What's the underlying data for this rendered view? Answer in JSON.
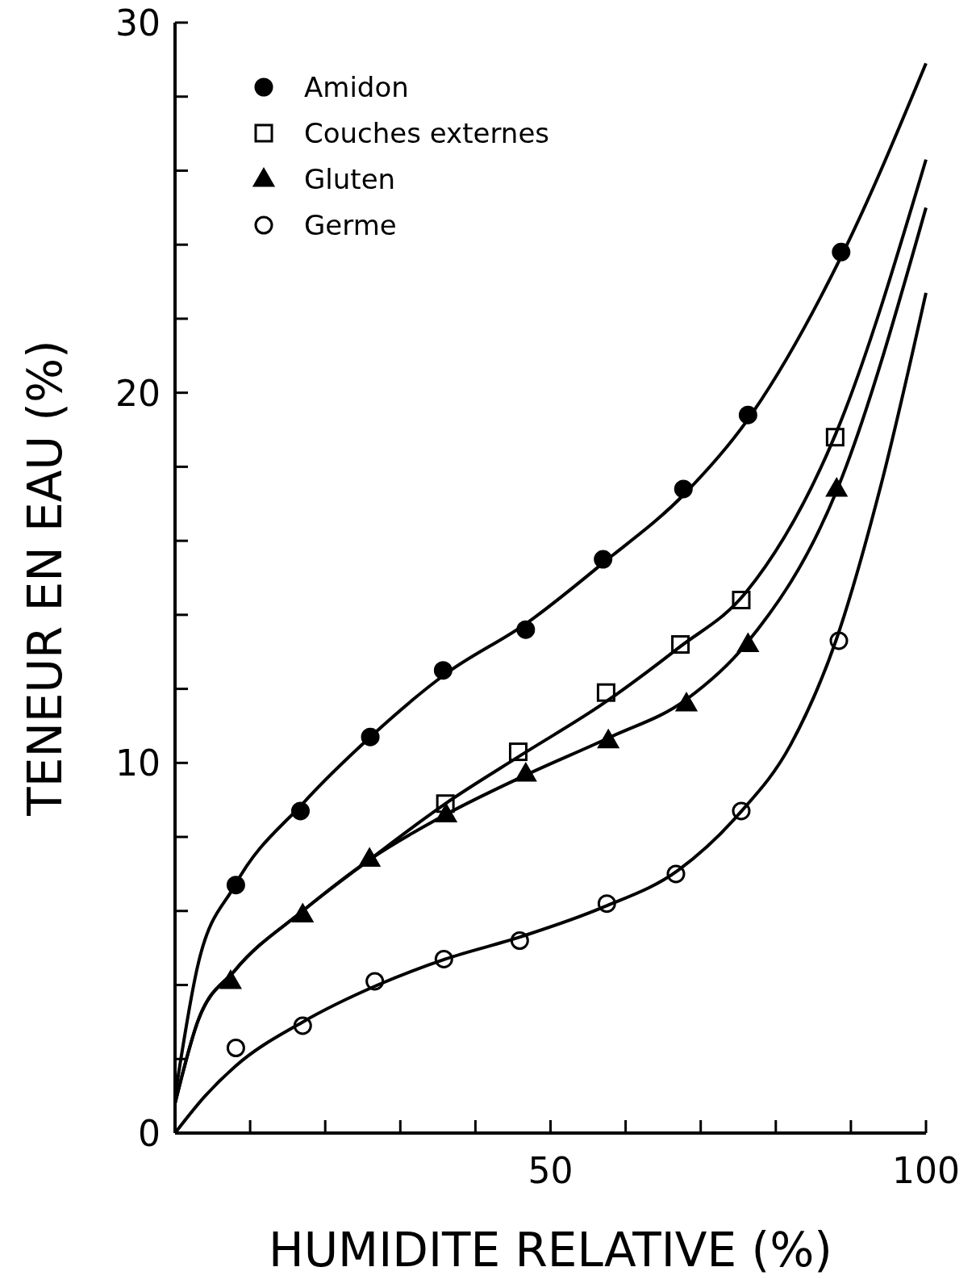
{
  "chart_data": {
    "type": "scatter",
    "xlabel": "HUMIDITE RELATIVE (%)",
    "ylabel": "TENEUR EN EAU (%)",
    "xlim": [
      0,
      100
    ],
    "ylim": [
      0,
      30
    ],
    "xticks": [
      {
        "value": 0,
        "label": null
      },
      {
        "value": 10,
        "label": null
      },
      {
        "value": 20,
        "label": null
      },
      {
        "value": 30,
        "label": null
      },
      {
        "value": 40,
        "label": null
      },
      50,
      {
        "value": 60,
        "label": null
      },
      {
        "value": 70,
        "label": null
      },
      {
        "value": 80,
        "label": null
      },
      {
        "value": 90,
        "label": null
      },
      100
    ],
    "yticks": [
      0,
      {
        "value": 2,
        "label": null
      },
      {
        "value": 4,
        "label": null
      },
      {
        "value": 6,
        "label": null
      },
      {
        "value": 8,
        "label": null
      },
      10,
      {
        "value": 12,
        "label": null
      },
      {
        "value": 14,
        "label": null
      },
      {
        "value": 16,
        "label": null
      },
      {
        "value": 18,
        "label": null
      },
      20,
      {
        "value": 22,
        "label": null
      },
      {
        "value": 24,
        "label": null
      },
      {
        "value": 26,
        "label": null
      },
      {
        "value": 28,
        "label": null
      },
      30
    ],
    "legend": "top left",
    "grid": false,
    "series": [
      {
        "name": "Amidon",
        "marker": "circle",
        "color": "#000000",
        "x": [
          8.1,
          16.7,
          26.0,
          35.7,
          46.7,
          57.0,
          67.7,
          76.3,
          88.7
        ],
        "values": [
          6.7,
          8.7,
          10.7,
          12.5,
          13.6,
          15.5,
          17.4,
          19.4,
          23.8
        ]
      },
      {
        "name": "Couches externes",
        "marker": "square-open",
        "color": "#000000",
        "x": [
          36.0,
          45.7,
          57.4,
          67.3,
          75.4,
          87.9
        ],
        "values": [
          8.9,
          10.3,
          11.9,
          13.2,
          14.4,
          18.8
        ]
      },
      {
        "name": "Gluten",
        "marker": "triangle",
        "color": "#000000",
        "x": [
          7.4,
          17.0,
          25.9,
          36.1,
          46.7,
          57.7,
          68.1,
          76.3,
          88.1
        ],
        "values": [
          4.1,
          5.9,
          7.4,
          8.6,
          9.7,
          10.6,
          11.6,
          13.2,
          17.4
        ]
      },
      {
        "name": "Germe",
        "marker": "circle-open",
        "color": "#000000",
        "x": [
          8.1,
          17.0,
          26.6,
          35.8,
          45.9,
          57.5,
          66.7,
          75.4,
          88.4
        ],
        "values": [
          2.3,
          2.9,
          4.1,
          4.7,
          5.2,
          6.2,
          7.0,
          8.7,
          13.3
        ]
      },
      {
        "type": "line",
        "color": "#000000",
        "x": [
          0,
          3,
          8,
          17,
          26,
          36,
          47,
          57,
          68,
          76,
          89,
          100
        ],
        "values": [
          1.0,
          4.5,
          6.7,
          8.9,
          10.7,
          12.4,
          13.8,
          15.4,
          17.3,
          19.2,
          23.8,
          28.9
        ]
      },
      {
        "type": "line",
        "color": "#000000",
        "x": [
          0,
          3,
          8,
          17,
          26,
          36,
          46,
          57,
          67,
          76,
          88,
          100
        ],
        "values": [
          0.8,
          3.0,
          4.4,
          6.0,
          7.4,
          8.9,
          10.2,
          11.6,
          13.1,
          14.6,
          18.9,
          26.3
        ]
      },
      {
        "type": "line",
        "color": "#000000",
        "x": [
          0,
          3,
          8,
          17,
          26,
          36,
          47,
          58,
          68,
          76,
          88,
          100
        ],
        "values": [
          0.8,
          3.0,
          4.4,
          6.0,
          7.4,
          8.6,
          9.7,
          10.7,
          11.7,
          13.2,
          17.3,
          25.0
        ]
      },
      {
        "type": "line",
        "color": "#000000",
        "x": [
          0,
          4,
          8,
          17,
          27,
          36,
          46,
          57,
          67,
          75,
          82,
          88,
          94,
          100
        ],
        "values": [
          0,
          1.0,
          1.8,
          3.0,
          4.0,
          4.7,
          5.3,
          6.1,
          7.1,
          8.6,
          10.5,
          13.3,
          17.5,
          22.7
        ]
      }
    ]
  }
}
